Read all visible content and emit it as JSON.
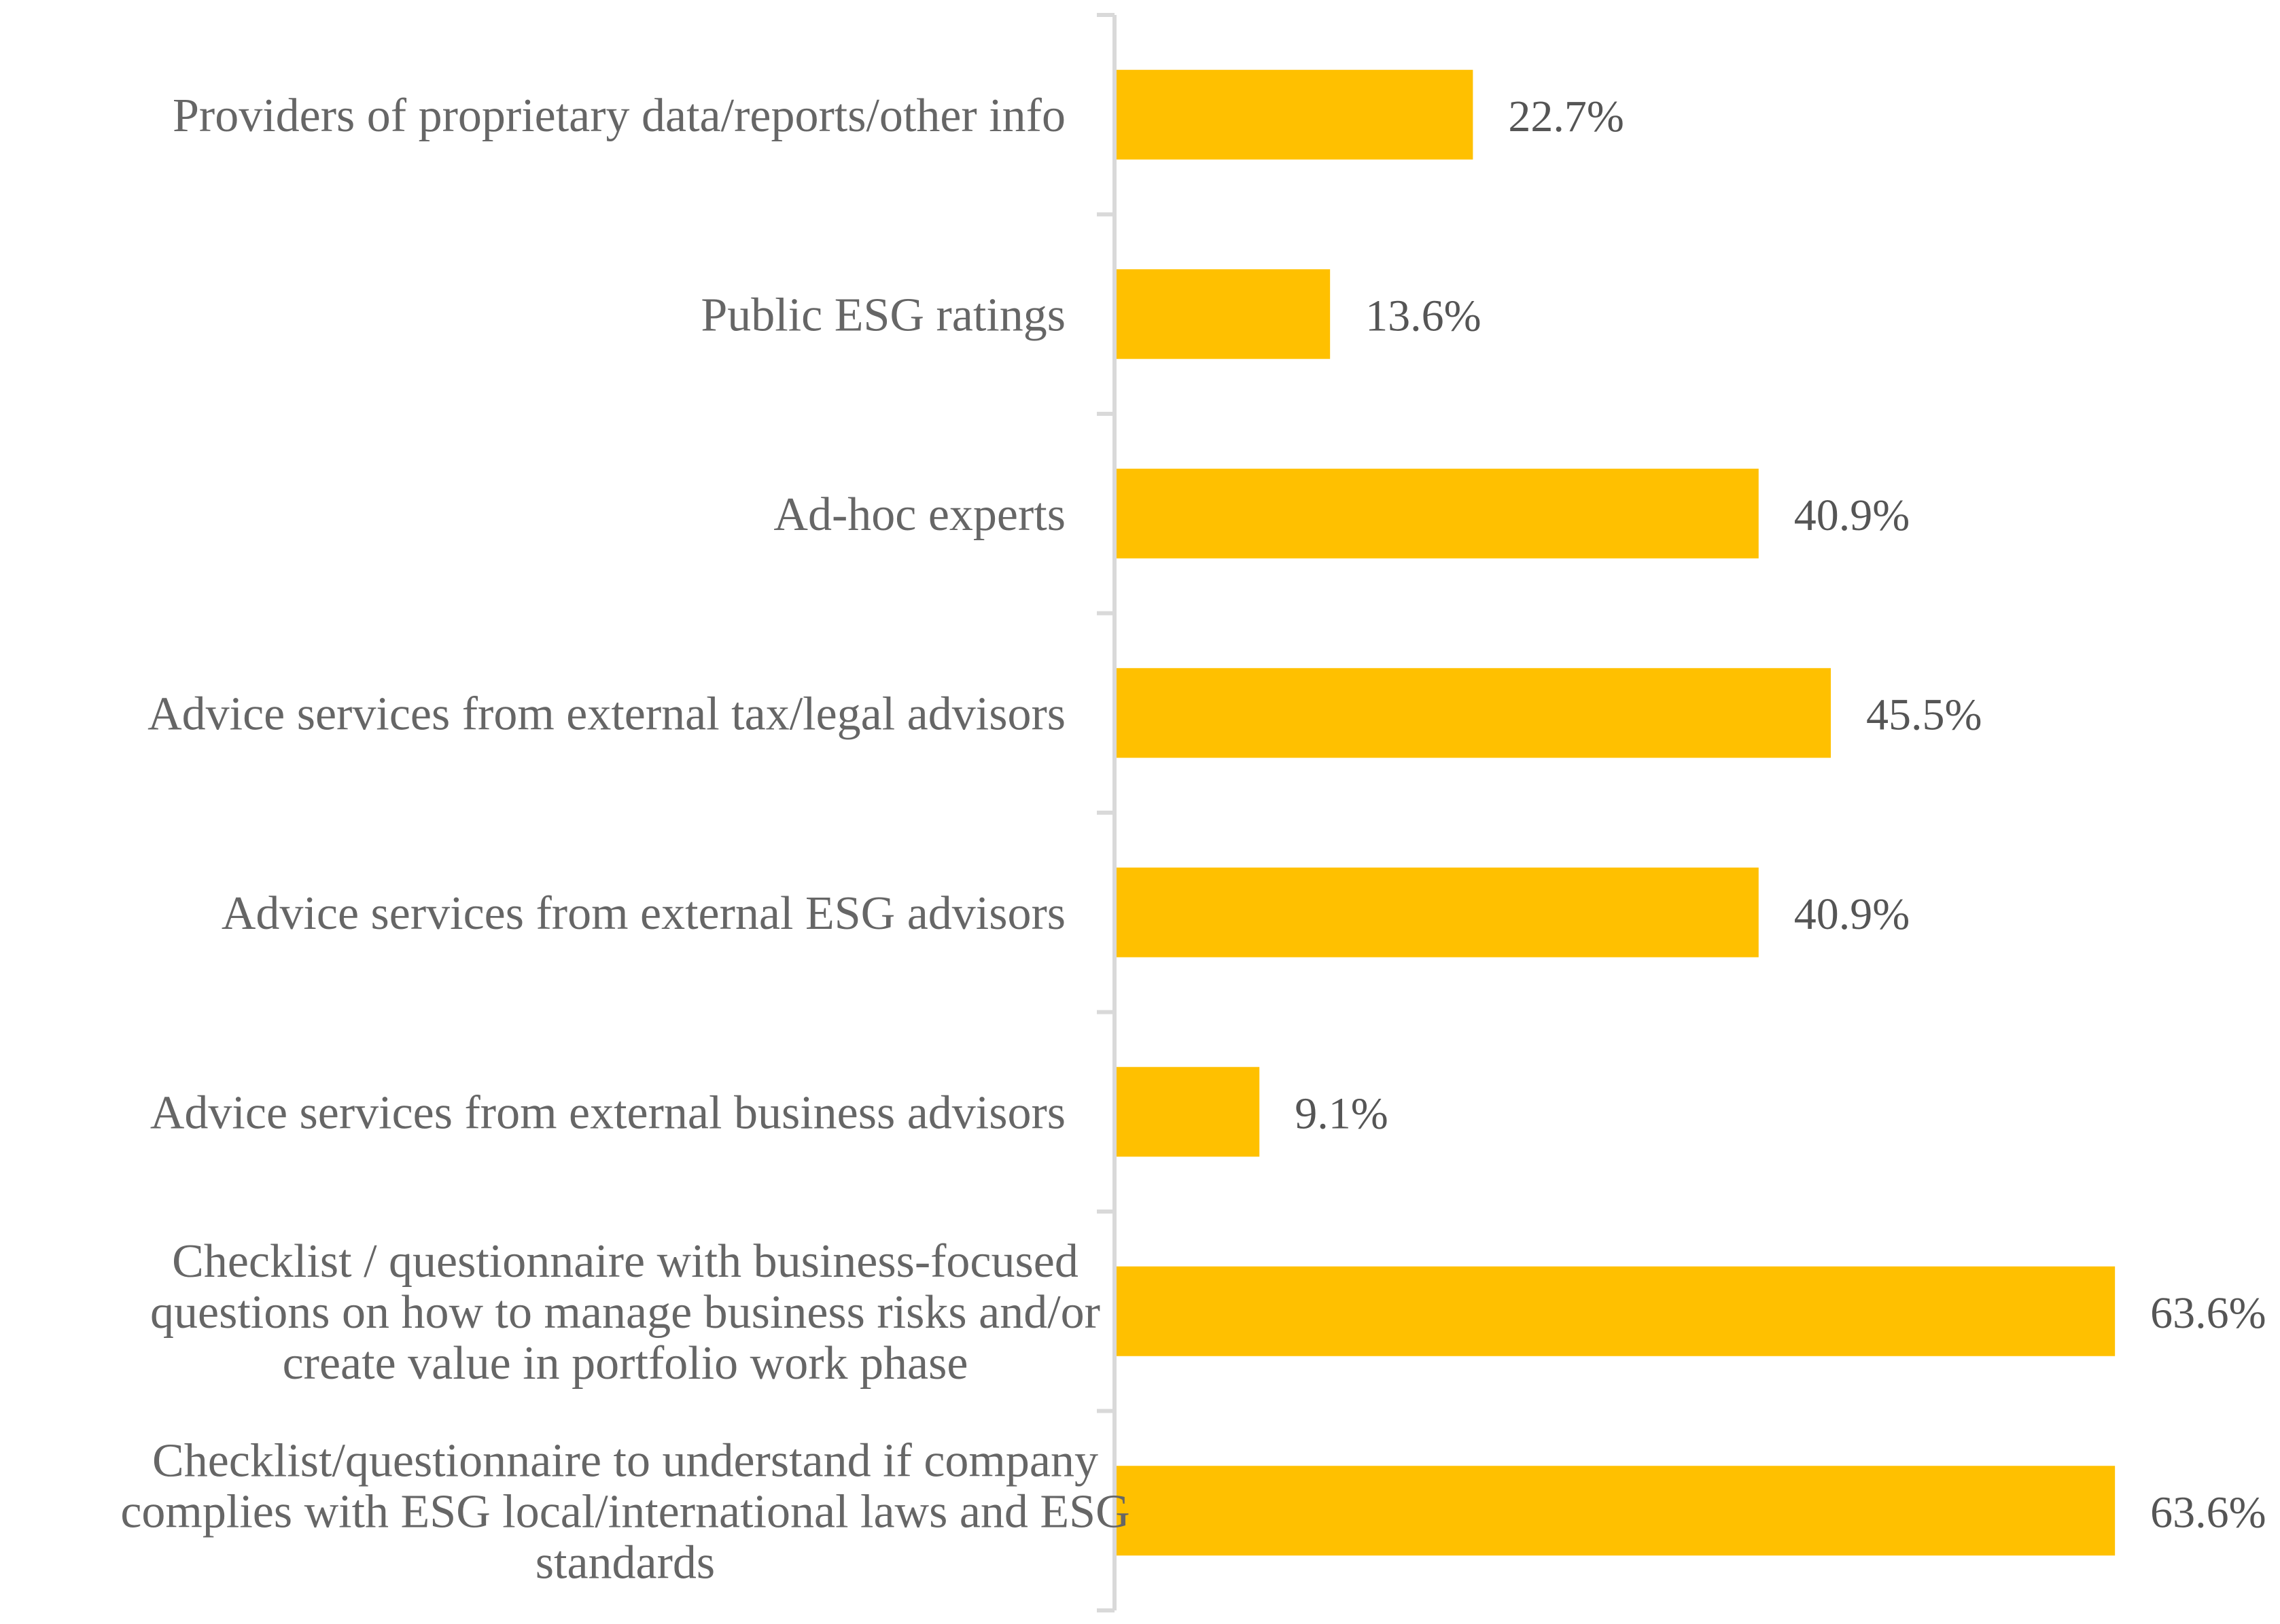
{
  "chart_data": {
    "type": "bar",
    "orientation": "horizontal",
    "title": "",
    "xlabel": "",
    "ylabel": "",
    "xlim": [
      0,
      70
    ],
    "grid": false,
    "legend": "none",
    "color": "#FFC000",
    "unit_suffix": "%",
    "categories": [
      [
        "Providers of proprietary data/reports/other info"
      ],
      [
        "Public ESG ratings"
      ],
      [
        "Ad-hoc experts"
      ],
      [
        "Advice services from external tax/legal advisors"
      ],
      [
        "Advice services from external ESG advisors"
      ],
      [
        "Advice services from external business advisors"
      ],
      [
        "Checklist / questionnaire with business-focused",
        "questions on how to manage business risks and/or",
        "create value in portfolio work phase"
      ],
      [
        "Checklist/questionnaire to understand if company",
        "complies with ESG local/international laws and ESG",
        "standards"
      ]
    ],
    "values": [
      22.7,
      13.6,
      40.9,
      45.5,
      40.9,
      9.1,
      63.6,
      63.6
    ],
    "data_labels": [
      "22.7%",
      "13.6%",
      "40.9%",
      "45.5%",
      "40.9%",
      "9.1%",
      "63.6%",
      "63.6%"
    ]
  }
}
